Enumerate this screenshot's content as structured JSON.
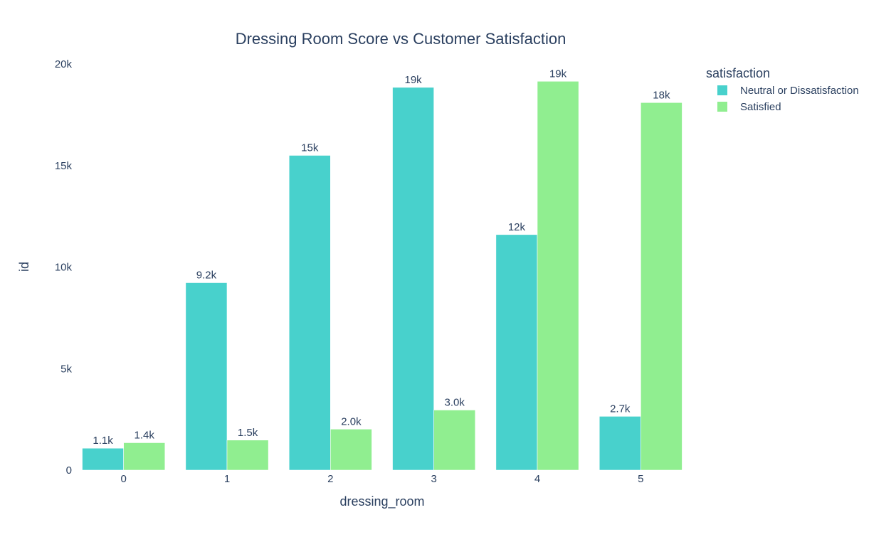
{
  "chart_data": {
    "type": "bar",
    "title": "Dressing Room Score vs Customer Satisfaction",
    "xlabel": "dressing_room",
    "ylabel": "id",
    "categories": [
      "0",
      "1",
      "2",
      "3",
      "4",
      "5"
    ],
    "series": [
      {
        "name": "Neutral or Dissatisfaction",
        "color": "#48d1cc",
        "values": [
          1080,
          9230,
          15500,
          18850,
          11600,
          2650
        ],
        "labels": [
          "1.1k",
          "9.2k",
          "15k",
          "19k",
          "12k",
          "2.7k"
        ]
      },
      {
        "name": "Satisfied",
        "color": "#90ee90",
        "values": [
          1350,
          1480,
          2020,
          2960,
          19150,
          18100
        ],
        "labels": [
          "1.4k",
          "1.5k",
          "2.0k",
          "3.0k",
          "19k",
          "18k"
        ]
      }
    ],
    "ylim": [
      0,
      20000
    ],
    "yticks": [
      0,
      5000,
      10000,
      15000,
      20000
    ],
    "ytick_labels": [
      "0",
      "5k",
      "10k",
      "15k",
      "20k"
    ],
    "grid": false,
    "legend": {
      "title": "satisfaction",
      "placement": "top-right"
    }
  }
}
